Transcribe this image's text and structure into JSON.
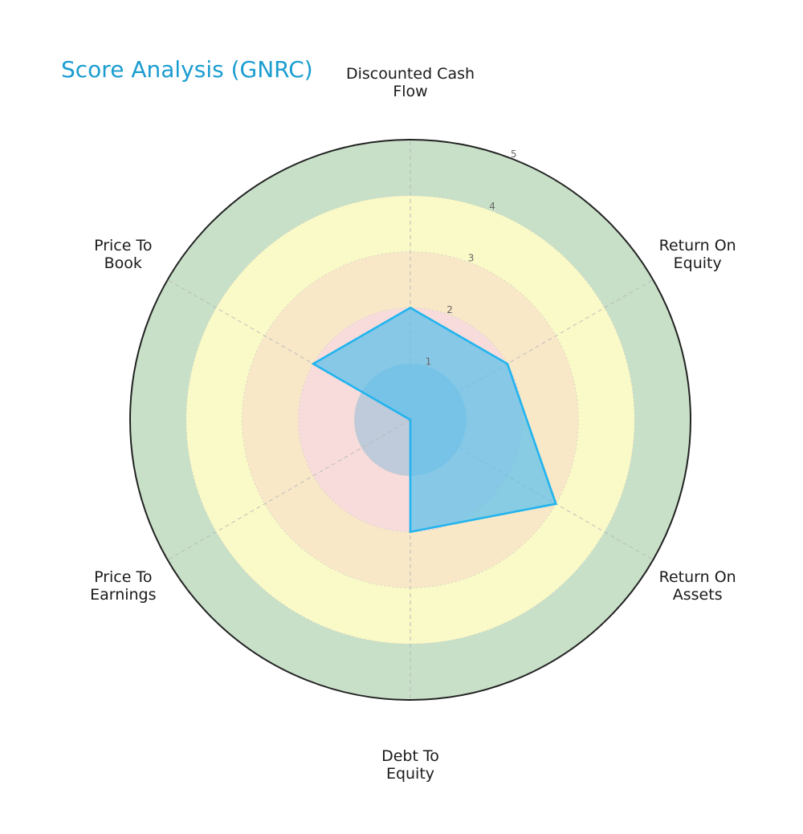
{
  "title": "Score Analysis (GNRC)",
  "colors": {
    "title": "#1b9dd0",
    "band_5": "#c8e0c8",
    "band_4": "#fafac8",
    "band_3": "#f8e8c8",
    "band_2": "#f8dcdc",
    "band_1": "#8fbcd8",
    "series_fill": "#5bc0eb",
    "series_line": "#22b4ee",
    "outer_ring": "#222222"
  },
  "chart_data": {
    "type": "radar",
    "title": "Score Analysis (GNRC)",
    "axes": [
      "Discounted Cash\nFlow",
      "Return On\nEquity",
      "Return On\nAssets",
      "Debt To\nEquity",
      "Price To\nEarnings",
      "Price To\nBook"
    ],
    "rlim": [
      0,
      5
    ],
    "rticks": [
      "1",
      "2",
      "3",
      "4",
      "5"
    ],
    "series": [
      {
        "values": [
          2,
          2,
          3,
          2,
          0,
          2
        ]
      }
    ],
    "grid": true
  }
}
